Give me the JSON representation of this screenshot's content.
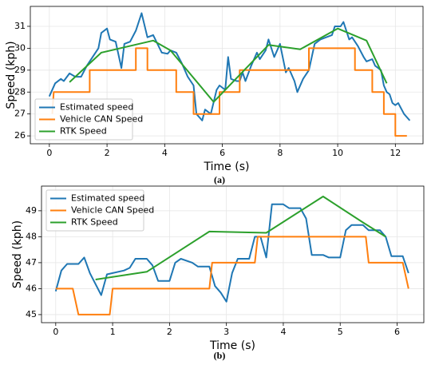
{
  "chart_data": [
    {
      "type": "line",
      "caption": "(a)",
      "xlabel": "Time (s)",
      "ylabel": "Speed (kph)",
      "xlim": [
        -0.66,
        12.96
      ],
      "ylim": [
        25.64,
        31.91
      ],
      "xticks": [
        0,
        2,
        4,
        6,
        8,
        10,
        12
      ],
      "yticks": [
        26,
        27,
        28,
        29,
        30,
        31
      ],
      "grid": true,
      "legend": "lower left",
      "series": [
        {
          "name": "Estimated speed",
          "color": "#1f77b4",
          "x": [
            0,
            0.2,
            0.4,
            0.5,
            0.7,
            0.9,
            1.1,
            1.3,
            1.5,
            1.7,
            1.8,
            2.0,
            2.1,
            2.3,
            2.5,
            2.6,
            2.8,
            3.0,
            3.2,
            3.4,
            3.6,
            3.9,
            4.1,
            4.2,
            4.4,
            4.6,
            4.8,
            5.0,
            5.1,
            5.3,
            5.4,
            5.6,
            5.8,
            5.9,
            6.1,
            6.2,
            6.3,
            6.5,
            6.6,
            6.7,
            6.8,
            7.0,
            7.2,
            7.3,
            7.5,
            7.6,
            7.8,
            8.0,
            8.2,
            8.3,
            8.5,
            8.6,
            8.8,
            9.0,
            9.2,
            9.4,
            9.6,
            9.8,
            9.9,
            10.1,
            10.2,
            10.4,
            10.5,
            10.7,
            10.9,
            11.0,
            11.2,
            11.3,
            11.5,
            11.6,
            11.7,
            11.8,
            11.9,
            12.0,
            12.1,
            12.3,
            12.5
          ],
          "values": [
            27.8,
            28.4,
            28.6,
            28.5,
            28.85,
            28.7,
            28.7,
            29.2,
            29.6,
            30.0,
            30.7,
            30.9,
            30.4,
            30.3,
            29.1,
            30.2,
            30.3,
            30.8,
            31.6,
            30.5,
            30.6,
            29.8,
            29.75,
            29.9,
            29.8,
            29.3,
            28.7,
            28.3,
            27.0,
            26.7,
            27.2,
            27.0,
            28.1,
            28.3,
            28.1,
            29.6,
            28.6,
            28.5,
            28.5,
            28.9,
            28.5,
            29.2,
            29.8,
            29.5,
            29.9,
            30.4,
            29.6,
            30.2,
            28.9,
            29.1,
            28.5,
            28.0,
            28.6,
            29.0,
            30.2,
            30.4,
            30.5,
            30.6,
            31.0,
            31.0,
            31.2,
            30.4,
            30.5,
            30.1,
            29.6,
            29.4,
            29.5,
            29.2,
            29.0,
            28.3,
            28.0,
            27.9,
            27.5,
            27.4,
            27.5,
            27.0,
            26.7
          ]
        },
        {
          "name": "Vehicle CAN Speed",
          "color": "#ff7f0e",
          "x": [
            0.1,
            0.15,
            1.4,
            1.4,
            3.0,
            3.0,
            3.4,
            3.4,
            4.4,
            4.4,
            5.0,
            5.0,
            5.9,
            5.9,
            6.6,
            6.6,
            9.0,
            9.0,
            10.6,
            10.6,
            11.2,
            11.2,
            11.6,
            11.6,
            12.0,
            12.0,
            12.4
          ],
          "values": [
            27,
            28,
            28,
            29,
            29,
            30,
            30,
            29,
            29,
            28,
            28,
            27,
            27,
            28,
            28,
            29,
            29,
            30,
            30,
            29,
            29,
            28,
            28,
            27,
            27,
            26,
            26
          ]
        },
        {
          "name": "RTK Speed",
          "color": "#2ca02c",
          "x": [
            0.7,
            1.8,
            3.6,
            4.2,
            5.7,
            7.6,
            8.7,
            10.0,
            11.0,
            11.7
          ],
          "values": [
            28.45,
            29.8,
            30.35,
            29.9,
            27.55,
            30.15,
            29.95,
            30.9,
            30.35,
            28.4
          ]
        }
      ]
    },
    {
      "type": "line",
      "caption": "(b)",
      "xlabel": "Time (s)",
      "ylabel": "Speed (kph)",
      "xlim": [
        -0.25,
        6.47
      ],
      "ylim": [
        44.69,
        49.95
      ],
      "xticks": [
        0,
        1,
        2,
        3,
        4,
        5,
        6
      ],
      "yticks": [
        45,
        46,
        47,
        48,
        49
      ],
      "grid": true,
      "legend": "upper left",
      "series": [
        {
          "name": "Estimated speed",
          "color": "#1f77b4",
          "x": [
            0,
            0.1,
            0.2,
            0.4,
            0.5,
            0.6,
            0.8,
            0.9,
            1.2,
            1.3,
            1.4,
            1.6,
            1.7,
            1.8,
            2.0,
            2.1,
            2.2,
            2.4,
            2.5,
            2.7,
            2.8,
            2.9,
            3.0,
            3.1,
            3.2,
            3.4,
            3.5,
            3.6,
            3.7,
            3.8,
            4.0,
            4.1,
            4.3,
            4.4,
            4.5,
            4.7,
            4.8,
            5.0,
            5.1,
            5.2,
            5.4,
            5.5,
            5.6,
            5.7,
            5.8,
            5.9,
            6.1,
            6.2
          ],
          "values": [
            45.9,
            46.7,
            46.95,
            46.95,
            47.2,
            46.6,
            45.75,
            46.55,
            46.7,
            46.8,
            47.15,
            47.15,
            46.9,
            46.3,
            46.3,
            47.0,
            47.15,
            47.0,
            46.85,
            46.85,
            46.1,
            45.85,
            45.5,
            46.6,
            47.15,
            47.15,
            48.0,
            48.0,
            47.2,
            49.25,
            49.25,
            49.1,
            49.1,
            48.7,
            47.3,
            47.3,
            47.2,
            47.2,
            48.25,
            48.45,
            48.45,
            48.25,
            48.25,
            48.25,
            48.0,
            47.25,
            47.25,
            46.6
          ]
        },
        {
          "name": "Vehicle CAN Speed",
          "color": "#ff7f0e",
          "x": [
            0,
            0.3,
            0.4,
            0.95,
            1.0,
            2.7,
            2.75,
            3.5,
            3.55,
            5.45,
            5.5,
            6.1,
            6.2
          ],
          "values": [
            46,
            46,
            45,
            45,
            46,
            46,
            47,
            47,
            48,
            48,
            47,
            47,
            46
          ]
        },
        {
          "name": "RTK Speed",
          "color": "#2ca02c",
          "x": [
            0.7,
            1.6,
            2.7,
            3.7,
            4.7,
            5.4,
            5.8
          ],
          "values": [
            46.35,
            46.65,
            48.2,
            48.15,
            49.55,
            48.55,
            48.0
          ]
        }
      ]
    }
  ]
}
